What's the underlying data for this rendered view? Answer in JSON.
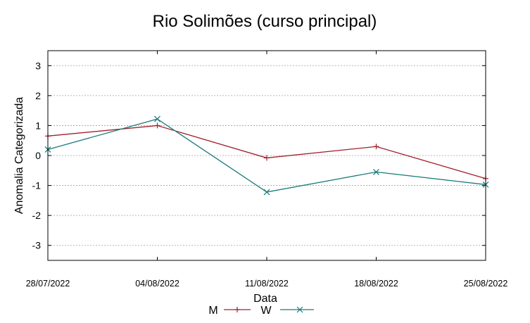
{
  "chart_data": {
    "type": "line",
    "title": "Rio Solimões (curso principal)",
    "xlabel": "Data",
    "ylabel": "Anomalia Categorizada",
    "categories": [
      "28/07/2022",
      "04/08/2022",
      "11/08/2022",
      "18/08/2022",
      "25/08/2022"
    ],
    "yticks": [
      "-3",
      "-2",
      "-1",
      "0",
      "1",
      "2",
      "3"
    ],
    "ylim": [
      -3.5,
      3.5
    ],
    "grid": true,
    "legend_position": "bottom-center",
    "series": [
      {
        "name": "M",
        "color": "#a0202a",
        "marker": "plus",
        "values": [
          0.65,
          1.0,
          -0.08,
          0.3,
          -0.77
        ]
      },
      {
        "name": "W",
        "color": "#1a7a7a",
        "marker": "cross",
        "values": [
          0.2,
          1.22,
          -1.22,
          -0.55,
          -0.97
        ]
      }
    ]
  }
}
